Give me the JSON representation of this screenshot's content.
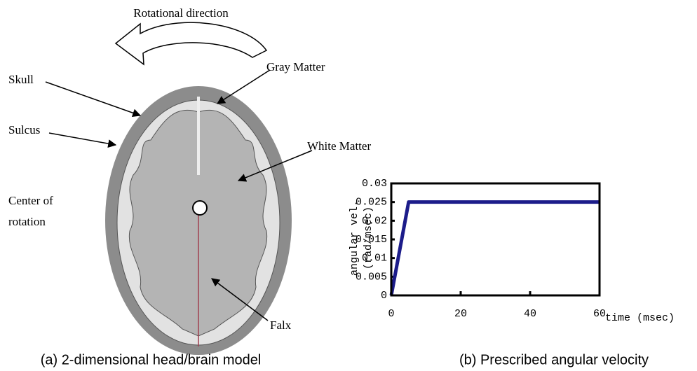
{
  "diagram": {
    "direction_label": "Rotational direction",
    "labels": {
      "skull": "Skull",
      "gray_matter": "Gray Matter",
      "sulcus": "Sulcus",
      "white_matter": "White Matter",
      "center": [
        "Center of",
        "rotation"
      ],
      "falx": "Falx"
    }
  },
  "chart_data": {
    "type": "line",
    "x": [
      0,
      5,
      60
    ],
    "values": [
      0,
      0.025,
      0.025
    ],
    "color": "#1c1c8a",
    "xlim": [
      0,
      60
    ],
    "xticks": [
      0,
      20,
      40,
      60
    ],
    "ylim": [
      0,
      0.03
    ],
    "yticks": [
      0,
      0.005,
      0.01,
      0.015,
      0.02,
      0.025,
      0.03
    ],
    "xlabel": "time (msec)",
    "ylabel": [
      "angular vel.",
      "(rad/msec)"
    ]
  },
  "captions": [
    "(a) 2-dimensional head/brain model",
    "(b) Prescribed angular velocity"
  ]
}
